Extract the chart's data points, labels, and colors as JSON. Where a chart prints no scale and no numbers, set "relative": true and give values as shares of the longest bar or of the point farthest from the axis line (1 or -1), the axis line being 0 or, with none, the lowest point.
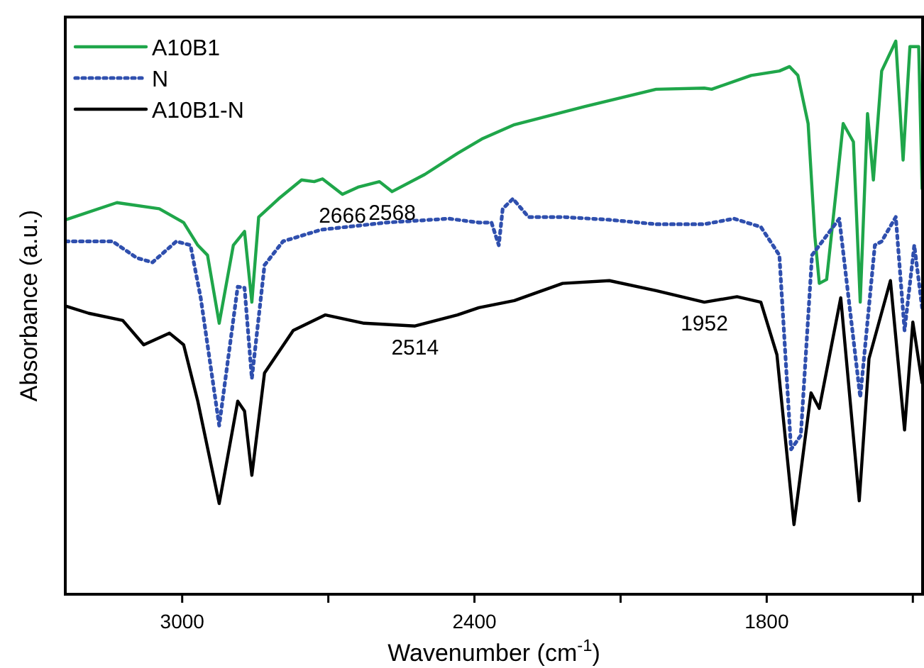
{
  "chart_data": {
    "type": "line",
    "relative": true,
    "xlabel": "Wavenumber (cm$^{-1}$)",
    "ylabel": "Absorbance (a.u.)",
    "xlim": [
      3240,
      1480
    ],
    "xticks": [
      3000,
      2400,
      1800,
      {
        "value": 2700,
        "label": null
      },
      {
        "value": 2100,
        "label": null
      },
      {
        "value": 1500,
        "label": null
      }
    ],
    "tick_labels": "x",
    "legend": "top left",
    "marker": "none",
    "grid": false,
    "x": [
      3239,
      3134,
      3047,
      2997,
      2968,
      2948,
      2924,
      2895,
      2872,
      2857,
      2843,
      2802,
      2755,
      2729,
      2712,
      2671,
      2639,
      2595,
      2569,
      2502,
      2435,
      2385,
      2318,
      2173,
      2027,
      1928,
      1913,
      1832,
      1774,
      1753,
      1736,
      1715,
      1701,
      1692,
      1677,
      1657,
      1643,
      1622,
      1608,
      1593,
      1581,
      1564,
      1535,
      1520,
      1506,
      1488,
      1481
    ],
    "series": [
      {
        "name": "A10B1",
        "color": "#1fa64a",
        "line_style": "solid",
        "values": [
          0.677,
          0.708,
          0.697,
          0.672,
          0.631,
          0.613,
          0.49,
          0.631,
          0.656,
          0.528,
          0.682,
          0.715,
          0.749,
          0.746,
          0.751,
          0.723,
          0.736,
          0.746,
          0.728,
          0.759,
          0.797,
          0.823,
          0.849,
          0.882,
          0.913,
          0.915,
          0.913,
          0.938,
          0.946,
          0.954,
          0.938,
          0.851,
          0.646,
          0.562,
          0.569,
          0.733,
          0.851,
          0.818,
          0.528,
          0.869,
          0.749,
          0.946,
          1,
          0.785,
          0.99,
          0.99,
          0.733
        ]
      },
      {
        "name": "N",
        "color": "#2f4fae",
        "line_style": "dotted",
        "x": [
          3239,
          3143,
          3093,
          3061,
          3012,
          2983,
          2962,
          2924,
          2886,
          2872,
          2857,
          2831,
          2793,
          2715,
          2581,
          2452,
          2391,
          2365,
          2350,
          2342,
          2321,
          2289,
          2219,
          2123,
          2027,
          1928,
          1867,
          1812,
          1774,
          1750,
          1730,
          1707,
          1651,
          1608,
          1578,
          1564,
          1535,
          1517,
          1497,
          1481
        ],
        "values": [
          0.638,
          0.638,
          0.608,
          0.6,
          0.638,
          0.631,
          0.536,
          0.305,
          0.556,
          0.554,
          0.39,
          0.595,
          0.638,
          0.659,
          0.672,
          0.679,
          0.672,
          0.672,
          0.631,
          0.697,
          0.715,
          0.682,
          0.682,
          0.677,
          0.669,
          0.669,
          0.679,
          0.664,
          0.613,
          0.262,
          0.287,
          0.613,
          0.679,
          0.356,
          0.631,
          0.638,
          0.682,
          0.477,
          0.631,
          0.518
        ]
      },
      {
        "name": "A10B1-N",
        "color": "#000000",
        "line_style": "solid",
        "x": [
          3239,
          3192,
          3122,
          3079,
          3026,
          2997,
          2968,
          2924,
          2886,
          2872,
          2857,
          2831,
          2772,
          2706,
          2627,
          2522,
          2435,
          2391,
          2318,
          2219,
          2123,
          2027,
          1928,
          1861,
          1812,
          1779,
          1744,
          1709,
          1692,
          1648,
          1610,
          1590,
          1546,
          1517,
          1500,
          1481
        ],
        "values": [
          0.521,
          0.508,
          0.495,
          0.451,
          0.472,
          0.451,
          0.349,
          0.164,
          0.349,
          0.331,
          0.215,
          0.4,
          0.477,
          0.505,
          0.49,
          0.485,
          0.505,
          0.518,
          0.531,
          0.562,
          0.567,
          0.549,
          0.528,
          0.538,
          0.528,
          0.433,
          0.126,
          0.364,
          0.336,
          0.536,
          0.169,
          0.426,
          0.567,
          0.297,
          0.492,
          0.382
        ]
      }
    ],
    "annotations": [
      {
        "text": "2666",
        "x": 2671,
        "y": 0.723
      },
      {
        "text": "2568",
        "x": 2569,
        "y": 0.728
      },
      {
        "text": "2514",
        "x": 2522,
        "y": 0.485
      },
      {
        "text": "1952",
        "x": 1928,
        "y": 0.528
      }
    ]
  }
}
